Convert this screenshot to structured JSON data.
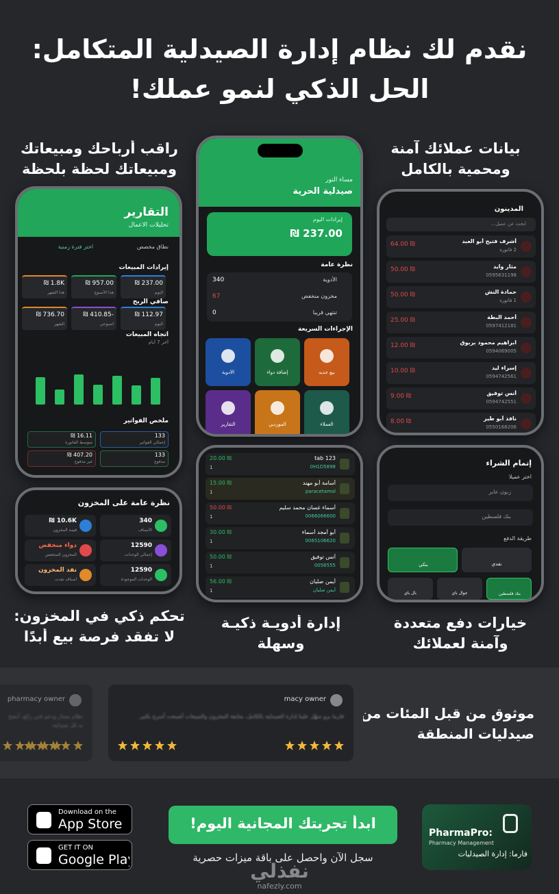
{
  "header": {
    "title_lines": [
      "نقدم لك نظام إدارة الصيدلية المتكامل:",
      "الحل الذكي لنمو عملك!"
    ]
  },
  "captions": {
    "profits": [
      "راقب أرباحك ومبيعاتك",
      "ومبيعاتك لحظة بلحظة"
    ],
    "customers": [
      "بيانات عملائك آمنة",
      "ومحمية بالكامل"
    ],
    "inventory": [
      "تحكم ذكي في المخزون:",
      "لا تفقد فرصة بيع أبدًا"
    ],
    "medicines": [
      "إدارة أدويـة ذكيـة",
      "وسهلة"
    ],
    "payments": [
      "خيارات دفع متعددة",
      "وآمنة لعملائك"
    ]
  },
  "reports_screen": {
    "title": "التقارير",
    "subtitle": "تحليلات الأعمال",
    "range": "نطاق مخصص",
    "range_hint": "اختر فترة زمنية",
    "revenue_heading": "إيرادات المبيعات",
    "revenue": [
      {
        "value": "237.00 ₪",
        "label": "اليوم"
      },
      {
        "value": "957.00 ₪",
        "label": "هذا الأسبوع"
      },
      {
        "value": "1.8K ₪",
        "label": "هذا الشهر"
      }
    ],
    "profit_heading": "صافي الربح",
    "profit": [
      {
        "value": "112.97 ₪",
        "label": "اليوم"
      },
      {
        "value": "-410.85 ₪",
        "label": "أسبوعي"
      },
      {
        "value": "736.70 ₪",
        "label": "الشهر"
      }
    ],
    "trend_heading": "اتجاه المبيعات",
    "trend_sub": "آخر 7 أيام",
    "trend_bars": [
      40,
      22,
      44,
      29,
      42,
      28,
      39
    ],
    "invoice_heading": "ملخص الفواتير",
    "invoices": [
      {
        "value": "133",
        "label": "إجمالي الفواتير"
      },
      {
        "value": "16.11 ₪",
        "label": "متوسط الفاتورة"
      },
      {
        "value": "133",
        "label": "مدفوع"
      },
      {
        "value": "407.20 ₪",
        "label": "غير مدفوع"
      }
    ]
  },
  "home_screen": {
    "greeting": "مساء النور",
    "pharmacy": "صيدلية الحرية",
    "revenue_label": "إيرادات اليوم",
    "revenue": "237.00 ₪",
    "overview_heading": "نظرة عامة",
    "overview": [
      {
        "label": "الأدوية",
        "value": "340"
      },
      {
        "label": "مخزون منخفض",
        "value": "67"
      },
      {
        "label": "تنتهي قريبا",
        "value": "0"
      }
    ],
    "actions_heading": "الإجراءات السريعة",
    "actions": [
      "بيع جديد",
      "إضافة دواء",
      "الأدوية",
      "العملاء",
      "الموردين",
      "التقارير"
    ]
  },
  "customers_screen": {
    "title": "المدينون",
    "search": "ابحث عن عميل...",
    "rows": [
      {
        "name": "أشرف فتيح أبو العبد",
        "detail": "2 فاتورة",
        "amount": "64.00 ₪"
      },
      {
        "name": "مثار وايد",
        "detail": "0595631198",
        "amount": "50.00 ₪"
      },
      {
        "name": "حمادة النش",
        "detail": "1 فاتورة",
        "amount": "50.00 ₪"
      },
      {
        "name": "أحمد البطة",
        "detail": "0597412181",
        "amount": "25.00 ₪"
      },
      {
        "name": "ابراهيم محمود بربوق",
        "detail": "0594069005",
        "amount": "12.00 ₪"
      },
      {
        "name": "إسراء ليد",
        "detail": "0594742561",
        "amount": "10.00 ₪"
      },
      {
        "name": "أنس توفيق",
        "detail": "0594742551",
        "amount": "9.00 ₪"
      },
      {
        "name": "نافذ أبو طير",
        "detail": "0550168206",
        "amount": "8.00 ₪"
      }
    ]
  },
  "inventory_card": {
    "title": "نظرة عامة على المخزون",
    "tiles": [
      {
        "value": "340",
        "label": "الأصناف"
      },
      {
        "value": "10.6K ₪",
        "label": "قيمة المخزون"
      },
      {
        "value": "12590",
        "label": "إجمالي الوحدات"
      },
      {
        "value": "دواء منخفض",
        "label": "المخزون المنخفض"
      },
      {
        "value": "12590",
        "label": "الوحدات الموجودة"
      },
      {
        "value": "نفد المخزون",
        "label": "أصناف نفدت"
      }
    ]
  },
  "medicine_list": {
    "rows": [
      {
        "name": "tab 123",
        "detail": "0H1D5898",
        "price": "20.00 ₪",
        "qty": "1"
      },
      {
        "name": "أسامة أبو مهند",
        "detail": "paracetamol",
        "price": "15.00 ₪",
        "qty": "1"
      },
      {
        "name": "أسماء غسان محمد سليم",
        "detail": "0066066600",
        "price": "50.00 ₪",
        "qty": "1"
      },
      {
        "name": "أبو أمجد أسماء",
        "detail": "0065106620",
        "price": "30.00 ₪",
        "qty": "1"
      },
      {
        "name": "أنس توفيق",
        "detail": "0056555",
        "price": "50.00 ₪",
        "qty": "1"
      },
      {
        "name": "أيمن صليان",
        "detail": "أيمن صليان",
        "price": "56.00 ₪",
        "qty": "1"
      }
    ]
  },
  "checkout": {
    "title": "إتمام الشراء",
    "customer_label": "اختر عميلا",
    "customer": "زبون عابر",
    "bank": "بنك فلسطين",
    "method_label": "طريقة الدفع",
    "methods": [
      "نقدي",
      "بنكي"
    ],
    "wallets": [
      "بنك فلسطين",
      "جوال باي",
      "بال باي"
    ]
  },
  "testimonials": {
    "trust_lines": [
      "موثوق من قبل المئات من",
      "صيدليات المنطقة"
    ],
    "cards": [
      {
        "author": "macy owner",
        "text": "فارما برو سهّل علينا إدارة الصيدلية بالكامل، متابعة المخزون والمبيعات أصبحت أسرع بكثير."
      },
      {
        "author": "pharmacy owner",
        "text": "نظام ممتاز ودعم فني رائع، أنصح به كل صيدلية."
      }
    ]
  },
  "footer": {
    "app_store_small": "Download on the",
    "app_store": "App Store",
    "play_small": "GET IT ON",
    "play": "Google Play",
    "cta": "ابدأ تجربتك المجانية اليوم!",
    "cta_sub": "سجل الآن واحصل على باقة ميزات حصرية",
    "brand": "PharmaPro:",
    "brand_sub": "Pharmacy Management",
    "brand_ar": "فارما: إدارة الصيدليات",
    "watermark": "نفذلي",
    "watermark_url": "nafezly.com"
  }
}
